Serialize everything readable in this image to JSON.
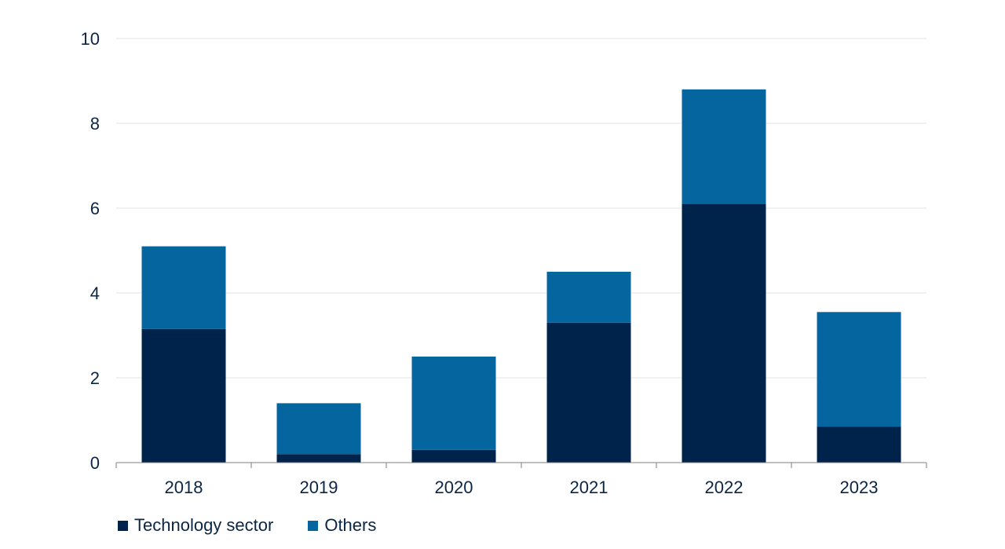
{
  "chart_data": {
    "type": "bar",
    "stacked": true,
    "categories": [
      "2018",
      "2019",
      "2020",
      "2021",
      "2022",
      "2023"
    ],
    "series": [
      {
        "name": "Technology sector",
        "color": "#00234b",
        "values": [
          3.15,
          0.2,
          0.3,
          3.3,
          6.1,
          0.85
        ]
      },
      {
        "name": "Others",
        "color": "#05669f",
        "values": [
          1.95,
          1.2,
          2.2,
          1.2,
          2.7,
          2.7
        ]
      }
    ],
    "yticks": [
      "0",
      "2",
      "4",
      "6",
      "8",
      "10"
    ],
    "ylim": [
      0,
      10
    ],
    "grid": true,
    "legend_position": "bottom-left",
    "title": "",
    "xlabel": "",
    "ylabel": ""
  }
}
